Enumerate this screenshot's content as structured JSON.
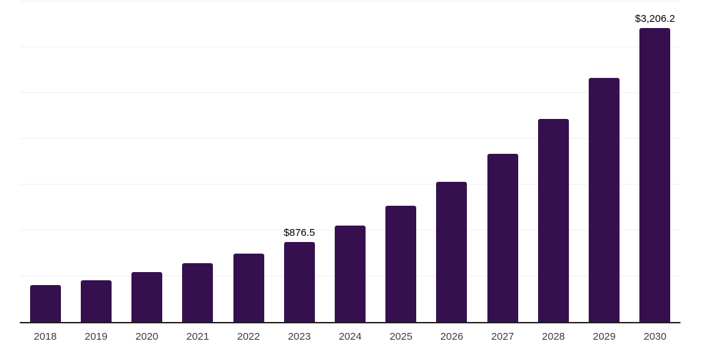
{
  "chart_data": {
    "type": "bar",
    "title": "",
    "xlabel": "",
    "ylabel": "",
    "categories": [
      "2018",
      "2019",
      "2020",
      "2021",
      "2022",
      "2023",
      "2024",
      "2025",
      "2026",
      "2027",
      "2028",
      "2029",
      "2030"
    ],
    "values": [
      400,
      455,
      545,
      645,
      750,
      876.5,
      1055,
      1270,
      1528,
      1839,
      2213,
      2664,
      3206.2
    ],
    "point_labels": [
      null,
      null,
      null,
      null,
      null,
      "$876.5",
      null,
      null,
      null,
      null,
      null,
      null,
      "$3,206.2"
    ],
    "ylim": [
      0,
      3500
    ],
    "gridline_interval": 500,
    "grid": "horizontal",
    "legend": "none",
    "colors": {
      "bar": "#36104e",
      "gridline": "#f0f0f0",
      "axis": "#1f1f1f",
      "tick_label": "#3c3c3c",
      "data_label": "#000000",
      "background": "#ffffff"
    }
  }
}
